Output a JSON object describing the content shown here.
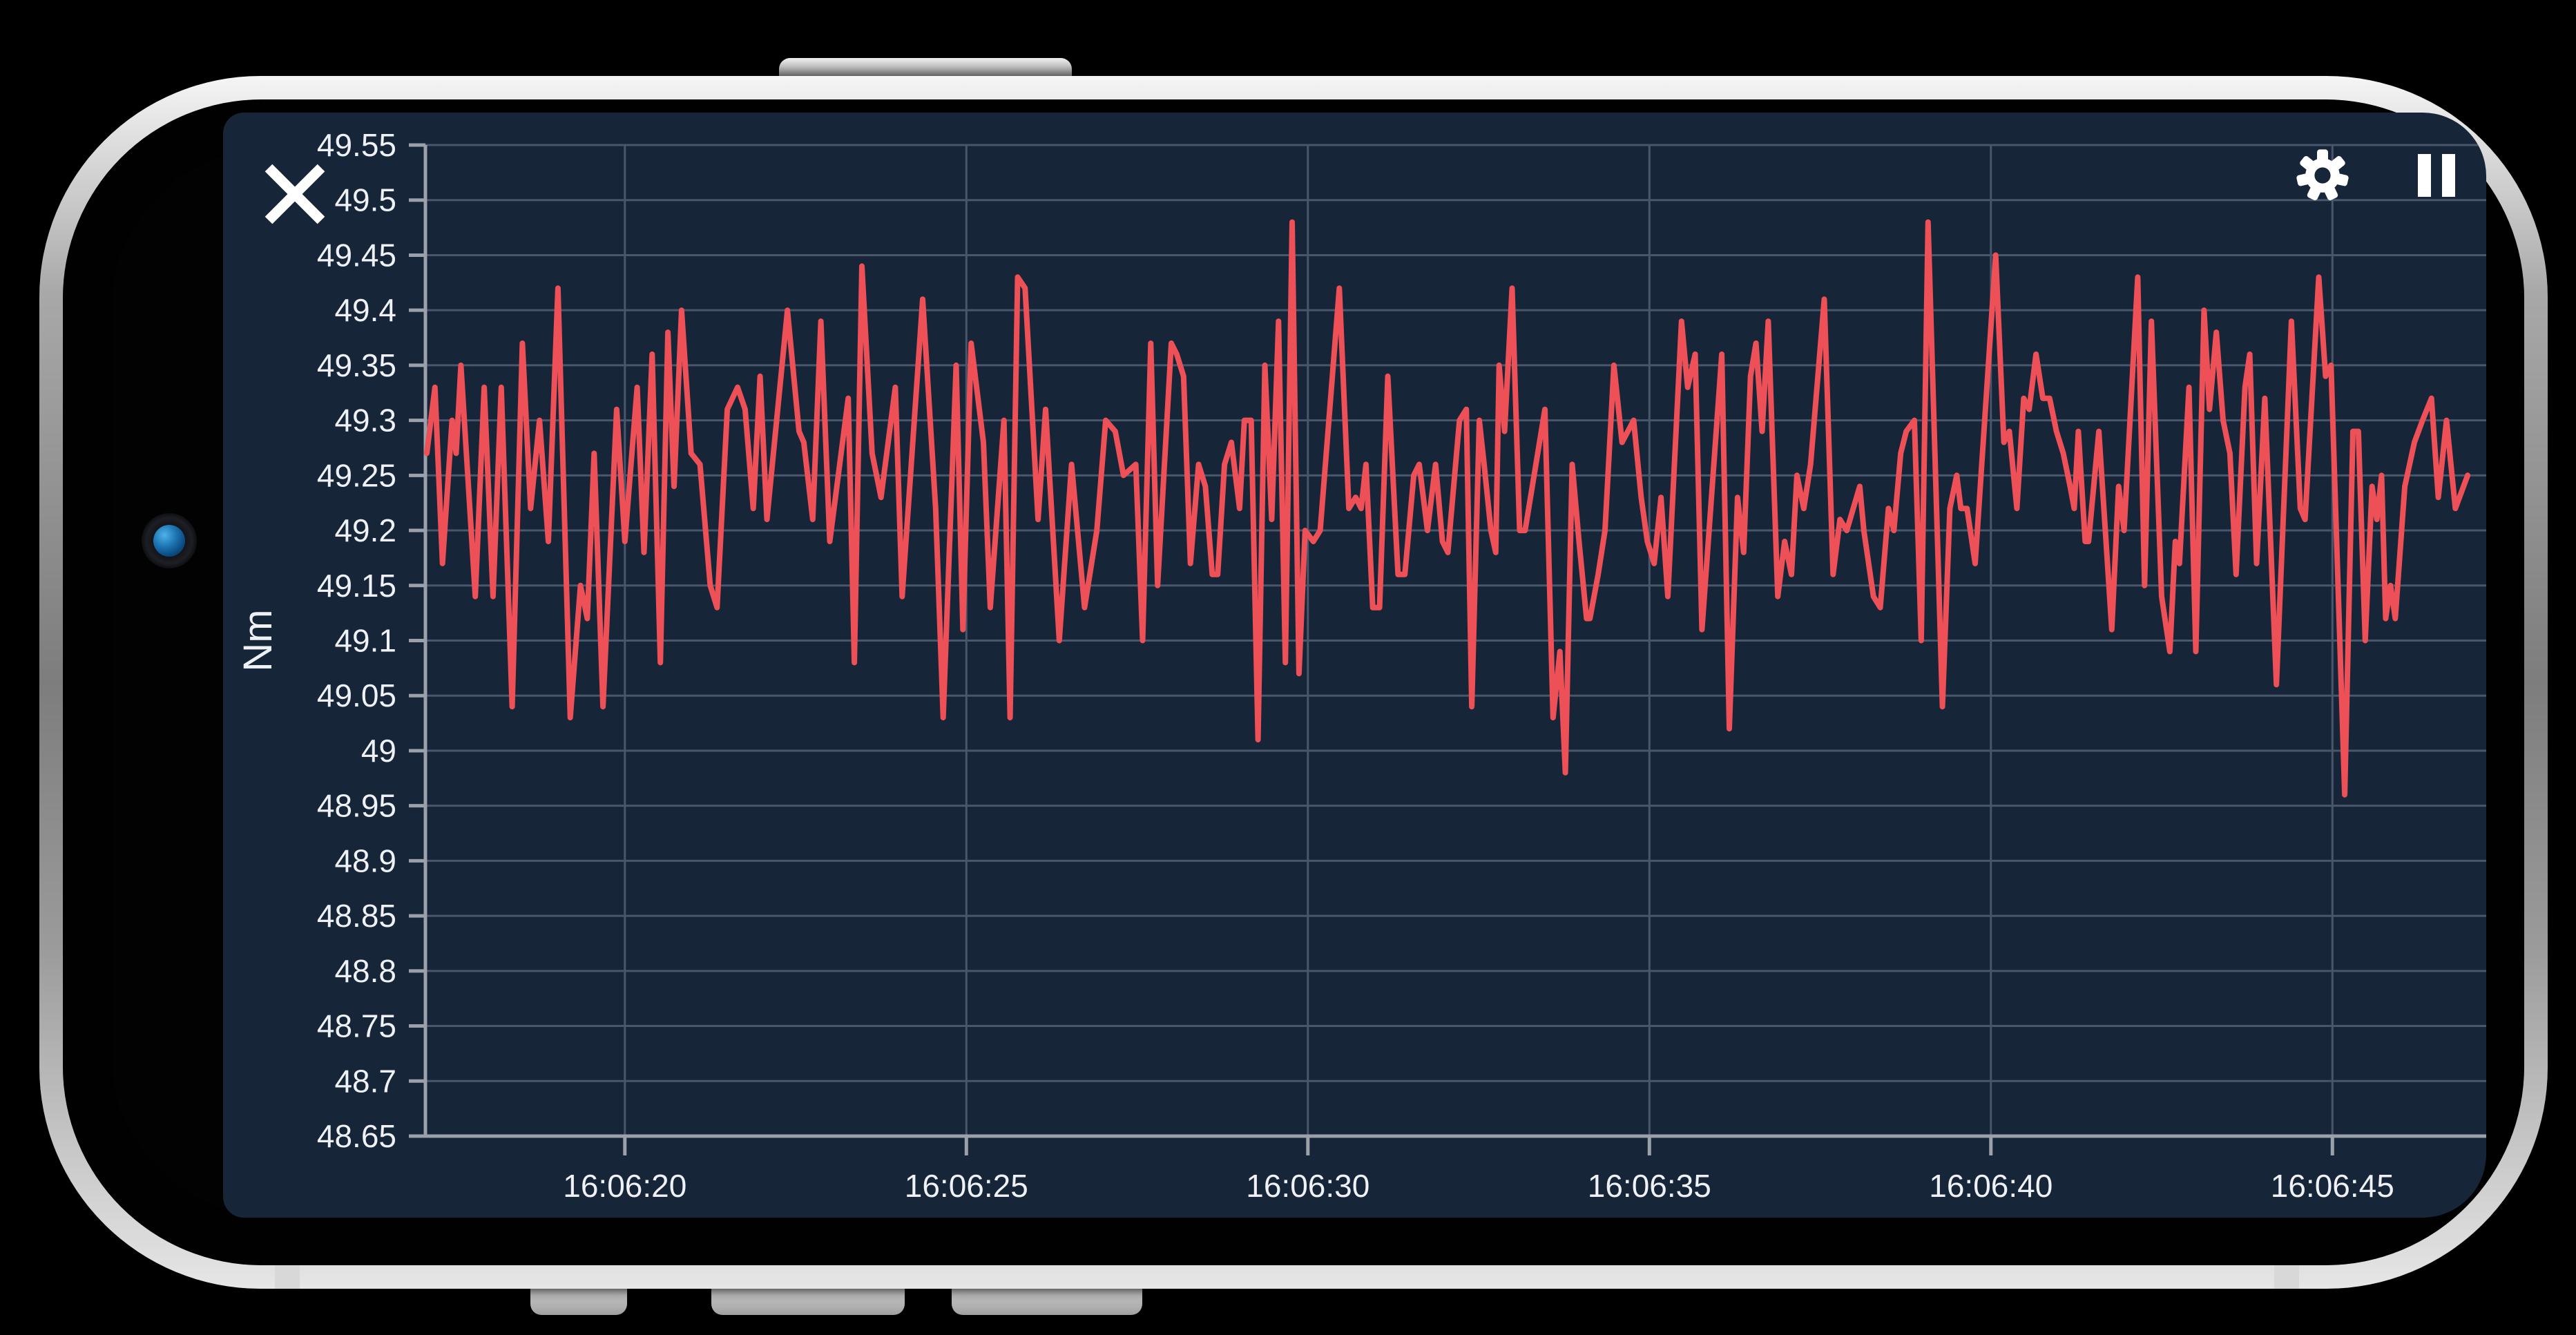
{
  "toolbar": {
    "close_icon": "close",
    "settings_icon": "settings-gear",
    "pause_icon": "pause"
  },
  "colors": {
    "background": "#000000",
    "screen_bg": "#172538",
    "line": "#ee5057",
    "grid": "#49566b",
    "axis": "#9aa1ab",
    "text": "#eef1f5",
    "icon": "#ffffff",
    "camera_lens": "#1f76b4",
    "rim": "#b5b5b5"
  },
  "chart_data": {
    "type": "line",
    "title": "",
    "xlabel": "",
    "ylabel": "Nm",
    "grid": true,
    "legend": "none",
    "ylim": [
      48.65,
      49.55
    ],
    "x_time_window": [
      "16:06:17",
      "16:06:47"
    ],
    "y_ticks": [
      {
        "v": 48.65,
        "label": "48.65"
      },
      {
        "v": 48.7,
        "label": "48.7"
      },
      {
        "v": 48.75,
        "label": "48.75"
      },
      {
        "v": 48.8,
        "label": "48.8"
      },
      {
        "v": 48.85,
        "label": "48.85"
      },
      {
        "v": 48.9,
        "label": "48.9"
      },
      {
        "v": 48.95,
        "label": "48.95"
      },
      {
        "v": 49.0,
        "label": "49"
      },
      {
        "v": 49.05,
        "label": "49.05"
      },
      {
        "v": 49.1,
        "label": "49.1"
      },
      {
        "v": 49.15,
        "label": "49.15"
      },
      {
        "v": 49.2,
        "label": "49.2"
      },
      {
        "v": 49.25,
        "label": "49.25"
      },
      {
        "v": 49.3,
        "label": "49.3"
      },
      {
        "v": 49.35,
        "label": "49.35"
      },
      {
        "v": 49.4,
        "label": "49.4"
      },
      {
        "v": 49.45,
        "label": "49.45"
      },
      {
        "v": 49.5,
        "label": "49.5"
      },
      {
        "v": 49.55,
        "label": "49.55"
      }
    ],
    "x_ticks": [
      {
        "t": 20,
        "label": "16:06:20"
      },
      {
        "t": 25,
        "label": "16:06:25"
      },
      {
        "t": 30,
        "label": "16:06:30"
      },
      {
        "t": 35,
        "label": "16:06:35"
      },
      {
        "t": 40,
        "label": "16:06:40"
      },
      {
        "t": 45,
        "label": "16:06:45"
      }
    ],
    "series": [
      {
        "name": "Nm",
        "x": [
          17.1,
          17.22,
          17.33,
          17.47,
          17.53,
          17.6,
          17.81,
          17.94,
          18.07,
          18.19,
          18.35,
          18.5,
          18.62,
          18.75,
          18.88,
          19.02,
          19.2,
          19.35,
          19.45,
          19.55,
          19.68,
          19.88,
          20.0,
          20.18,
          20.28,
          20.4,
          20.52,
          20.63,
          20.72,
          20.83,
          20.97,
          21.1,
          21.25,
          21.35,
          21.5,
          21.65,
          21.76,
          21.88,
          21.98,
          22.08,
          22.38,
          22.55,
          22.62,
          22.75,
          22.87,
          23.0,
          23.27,
          23.36,
          23.47,
          23.62,
          23.75,
          23.96,
          24.06,
          24.36,
          24.55,
          24.66,
          24.85,
          24.95,
          25.07,
          25.25,
          25.35,
          25.55,
          25.64,
          25.75,
          25.86,
          26.05,
          26.16,
          26.36,
          26.54,
          26.73,
          26.91,
          27.04,
          27.18,
          27.3,
          27.48,
          27.58,
          27.7,
          27.8,
          28.0,
          28.08,
          28.18,
          28.28,
          28.4,
          28.5,
          28.6,
          28.68,
          28.78,
          28.88,
          29.0,
          29.07,
          29.17,
          29.27,
          29.37,
          29.47,
          29.57,
          29.67,
          29.77,
          29.87,
          29.96,
          30.08,
          30.18,
          30.46,
          30.6,
          30.7,
          30.78,
          30.85,
          30.95,
          31.05,
          31.17,
          31.32,
          31.42,
          31.55,
          31.63,
          31.75,
          31.87,
          31.97,
          32.05,
          32.22,
          32.32,
          32.4,
          32.51,
          32.58,
          32.68,
          32.75,
          32.8,
          32.88,
          32.99,
          33.1,
          33.18,
          33.47,
          33.59,
          33.69,
          33.77,
          33.87,
          33.97,
          34.08,
          34.13,
          34.25,
          34.35,
          34.48,
          34.6,
          34.77,
          34.88,
          34.97,
          35.07,
          35.17,
          35.27,
          35.47,
          35.56,
          35.67,
          35.77,
          36.06,
          36.17,
          36.29,
          36.38,
          36.48,
          36.56,
          36.65,
          36.74,
          36.88,
          36.98,
          37.08,
          37.16,
          37.26,
          37.36,
          37.56,
          37.69,
          37.79,
          37.89,
          38.08,
          38.14,
          38.28,
          38.38,
          38.5,
          38.58,
          38.68,
          38.76,
          38.88,
          38.98,
          39.08,
          39.29,
          39.4,
          39.5,
          39.56,
          39.65,
          39.77,
          40.07,
          40.19,
          40.27,
          40.38,
          40.48,
          40.56,
          40.66,
          40.76,
          40.86,
          40.96,
          41.06,
          41.16,
          41.22,
          41.28,
          41.38,
          41.43,
          41.58,
          41.77,
          41.87,
          41.95,
          42.15,
          42.25,
          42.35,
          42.5,
          42.62,
          42.7,
          42.76,
          42.9,
          43.0,
          43.12,
          43.2,
          43.3,
          43.4,
          43.5,
          43.59,
          43.72,
          43.79,
          43.89,
          44.01,
          44.18,
          44.4,
          44.53,
          44.6,
          44.8,
          44.9,
          44.98,
          45.18,
          45.3,
          45.38,
          45.48,
          45.58,
          45.65,
          45.72,
          45.78,
          45.85,
          45.92,
          46.06,
          46.2,
          46.32,
          46.45,
          46.55,
          46.67,
          46.8,
          46.98
        ],
        "y": [
          49.27,
          49.33,
          49.17,
          49.3,
          49.27,
          49.35,
          49.14,
          49.33,
          49.14,
          49.33,
          49.04,
          49.37,
          49.22,
          49.3,
          49.19,
          49.42,
          49.03,
          49.15,
          49.12,
          49.27,
          49.04,
          49.31,
          49.19,
          49.33,
          49.18,
          49.36,
          49.08,
          49.38,
          49.24,
          49.4,
          49.27,
          49.26,
          49.15,
          49.13,
          49.31,
          49.33,
          49.31,
          49.22,
          49.34,
          49.21,
          49.4,
          49.29,
          49.28,
          49.21,
          49.39,
          49.19,
          49.32,
          49.08,
          49.44,
          49.27,
          49.23,
          49.33,
          49.14,
          49.41,
          49.22,
          49.03,
          49.35,
          49.11,
          49.37,
          49.28,
          49.13,
          49.3,
          49.03,
          49.43,
          49.42,
          49.21,
          49.31,
          49.1,
          49.26,
          49.13,
          49.2,
          49.3,
          49.29,
          49.25,
          49.26,
          49.1,
          49.37,
          49.15,
          49.37,
          49.36,
          49.34,
          49.17,
          49.26,
          49.24,
          49.16,
          49.16,
          49.26,
          49.28,
          49.22,
          49.3,
          49.3,
          49.01,
          49.35,
          49.21,
          49.39,
          49.08,
          49.48,
          49.07,
          49.2,
          49.19,
          49.2,
          49.42,
          49.22,
          49.23,
          49.22,
          49.26,
          49.13,
          49.13,
          49.34,
          49.16,
          49.16,
          49.25,
          49.26,
          49.2,
          49.26,
          49.19,
          49.18,
          49.3,
          49.31,
          49.04,
          49.3,
          49.26,
          49.2,
          49.18,
          49.35,
          49.29,
          49.42,
          49.2,
          49.2,
          49.31,
          49.03,
          49.09,
          48.98,
          49.26,
          49.19,
          49.12,
          49.12,
          49.16,
          49.2,
          49.35,
          49.28,
          49.3,
          49.23,
          49.19,
          49.17,
          49.23,
          49.14,
          49.39,
          49.33,
          49.36,
          49.11,
          49.36,
          49.02,
          49.23,
          49.18,
          49.34,
          49.37,
          49.29,
          49.39,
          49.14,
          49.19,
          49.16,
          49.25,
          49.22,
          49.26,
          49.41,
          49.16,
          49.21,
          49.2,
          49.24,
          49.2,
          49.14,
          49.13,
          49.22,
          49.2,
          49.27,
          49.29,
          49.3,
          49.1,
          49.48,
          49.04,
          49.22,
          49.25,
          49.22,
          49.22,
          49.17,
          49.45,
          49.28,
          49.29,
          49.22,
          49.32,
          49.31,
          49.36,
          49.32,
          49.32,
          49.29,
          49.27,
          49.24,
          49.22,
          49.29,
          49.19,
          49.19,
          49.29,
          49.11,
          49.24,
          49.2,
          49.43,
          49.15,
          49.39,
          49.14,
          49.09,
          49.19,
          49.17,
          49.33,
          49.09,
          49.4,
          49.31,
          49.38,
          49.3,
          49.27,
          49.16,
          49.33,
          49.36,
          49.17,
          49.32,
          49.06,
          49.39,
          49.22,
          49.21,
          49.43,
          49.34,
          49.35,
          48.96,
          49.29,
          49.29,
          49.1,
          49.24,
          49.21,
          49.25,
          49.12,
          49.15,
          49.12,
          49.24,
          49.28,
          49.3,
          49.32,
          49.23,
          49.3,
          49.22,
          49.25
        ]
      }
    ]
  }
}
